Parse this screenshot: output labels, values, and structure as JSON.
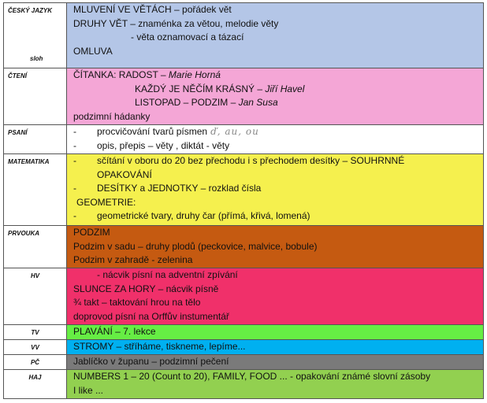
{
  "rows": [
    {
      "subject": "ČESKÝ JAZYK",
      "subject2": "sloh",
      "color": "#b4c6e7",
      "lines": [
        "MLUVENÍ VE VĚTÁCH – pořádek vět",
        "DRUHY VĚT – znaménka za větou, melodie věty",
        "- věta oznamovací a tázací",
        "OMLUVA"
      ]
    },
    {
      "subject": "ČTENÍ",
      "color": "#f4a6d6",
      "lines": [
        "ČÍTANKA:  RADOST – ",
        "Marie Horná",
        "KAŽDÝ JE NĚČÍM KRÁSNÝ – ",
        "Jiří Havel",
        "LISTOPAD – PODZIM – ",
        "Jan Susa",
        "podzimní hádanky"
      ]
    },
    {
      "subject": "PSANÍ",
      "color": "#ffffff",
      "lines": [
        "-",
        "procvičování tvarů písmen",
        "ď, au, ou",
        "-",
        "opis, přepis – věty , diktát - věty"
      ]
    },
    {
      "subject": "MATEMATIKA",
      "color": "#f5f04e",
      "lines": [
        "-",
        "sčítání v oboru do 20 bez přechodu i s přechodem desítky – SOUHRNNÉ",
        "OPAKOVÁNÍ",
        "-",
        "DESÍTKY a JEDNOTKY – rozklad čísla",
        "GEOMETRIE:",
        "-",
        "geometrické tvary, druhy čar (přímá, křivá, lomená)"
      ]
    },
    {
      "subject": "PRVOUKA",
      "color": "#c55a11",
      "lines": [
        "PODZIM",
        "Podzim v sadu – druhy plodů (peckovice, malvice, bobule)",
        "Podzim v zahradě - zelenina"
      ]
    },
    {
      "subject": "HV",
      "color": "#f0306a",
      "lines": [
        "- nácvik písní na adventní zpívání",
        "SLUNCE ZA HORY – nácvik písně",
        "¾ takt – taktování hrou na tělo",
        "doprovod písní na Orffův instumentář"
      ]
    },
    {
      "subject": "TV",
      "color": "#66ee44",
      "lines": [
        "PLAVÁNÍ – 7. lekce"
      ]
    },
    {
      "subject": "VV",
      "color": "#00b0f0",
      "lines": [
        "STROMY – stříháme, tiskneme, lepíme..."
      ]
    },
    {
      "subject": "PČ",
      "color": "#7a7a7a",
      "lines": [
        "Jablíčko v županu – podzimní pečení"
      ]
    },
    {
      "subject": "HAJ",
      "color": "#92d050",
      "lines": [
        "NUMBERS 1 – 20 (Count to 20), FAMILY, FOOD ... - opakování známé slovní zásoby",
        "I like ..."
      ]
    }
  ]
}
